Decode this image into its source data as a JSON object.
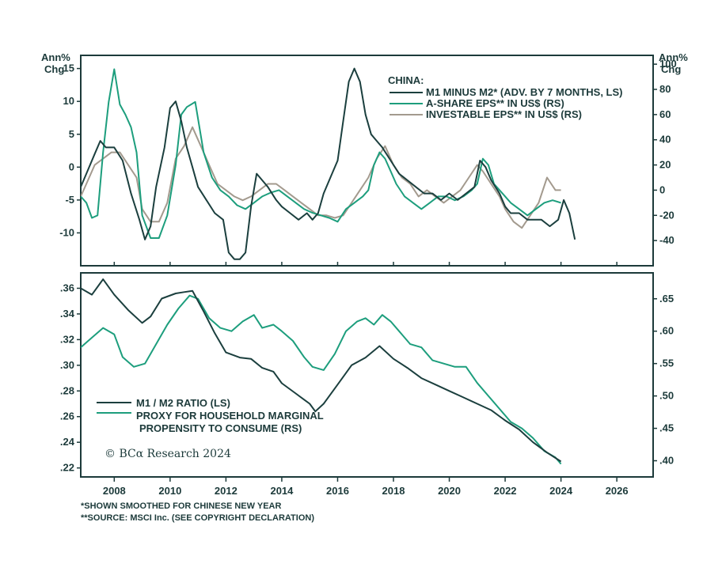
{
  "colors": {
    "dark": "#1b3f3e",
    "green": "#1d9e7d",
    "tan": "#a39a8e",
    "axis": "#1c3a3a"
  },
  "top_panel": {
    "left_unit_line1": "Ann%",
    "left_unit_line2": "Chg",
    "right_unit_line1": "Ann%",
    "right_unit_line2": "Chg",
    "legend_title": "CHINA:",
    "legend_items": [
      "M1 MINUS M2* (ADV. BY 7 MONTHS, LS)",
      "A-SHARE EPS** IN US$ (RS)",
      "INVESTABLE EPS** IN US$ (RS)"
    ]
  },
  "bottom_panel": {
    "legend_items": [
      "M1 / M2 RATIO (LS)",
      "PROXY FOR HOUSEHOLD MARGINAL",
      "PROPENSITY TO CONSUME (RS)"
    ]
  },
  "copyright": "© BCα Research 2024",
  "footnotes": [
    "*SHOWN SMOOTHED FOR CHINESE NEW YEAR",
    "**SOURCE: MSCI Inc. (SEE COPYRIGHT DECLARATION)"
  ],
  "chart_data": [
    {
      "type": "line",
      "title": "CHINA:",
      "xlim": [
        2006.8,
        2027.3
      ],
      "x_ticks": [
        2008,
        2010,
        2012,
        2014,
        2016,
        2018,
        2020,
        2022,
        2024,
        2026
      ],
      "ylim_left": [
        -15,
        17
      ],
      "yticks_left": [
        15,
        10,
        5,
        0,
        -5,
        -10
      ],
      "ylim_right": [
        -60,
        107
      ],
      "yticks_right": [
        100,
        80,
        60,
        40,
        20,
        0,
        -20,
        -40
      ],
      "series": [
        {
          "name": "M1 MINUS M2* (ADV. BY 7 MONTHS, LS)",
          "axis": "left",
          "color": "dark",
          "x": [
            2006.8,
            2007.0,
            2007.3,
            2007.5,
            2007.7,
            2008.0,
            2008.3,
            2008.6,
            2008.9,
            2009.1,
            2009.3,
            2009.5,
            2009.8,
            2010.0,
            2010.2,
            2010.4,
            2010.6,
            2010.8,
            2011.0,
            2011.3,
            2011.6,
            2011.9,
            2012.1,
            2012.3,
            2012.5,
            2012.7,
            2012.9,
            2013.1,
            2013.3,
            2013.5,
            2013.8,
            2014.0,
            2014.3,
            2014.6,
            2014.9,
            2015.1,
            2015.3,
            2015.5,
            2015.8,
            2016.0,
            2016.2,
            2016.4,
            2016.6,
            2016.8,
            2017.0,
            2017.2,
            2017.4,
            2017.6,
            2017.9,
            2018.2,
            2018.5,
            2018.8,
            2019.1,
            2019.4,
            2019.7,
            2020.0,
            2020.3,
            2020.6,
            2020.9,
            2021.1,
            2021.3,
            2021.5,
            2021.8,
            2022.0,
            2022.2,
            2022.5,
            2022.8,
            2023.0,
            2023.3,
            2023.6,
            2023.9,
            2024.1,
            2024.3,
            2024.5
          ],
          "y": [
            -3,
            -1,
            2,
            4,
            3,
            3,
            1,
            -4,
            -8,
            -11,
            -9,
            -3,
            3,
            9,
            10,
            7,
            3,
            0,
            -3,
            -5,
            -7,
            -8,
            -13,
            -14,
            -14,
            -13,
            -6,
            -1,
            -2,
            -3,
            -5,
            -6,
            -7,
            -8,
            -7,
            -8,
            -7,
            -4,
            -1,
            1,
            7,
            13,
            15,
            13,
            8,
            5,
            4,
            3,
            1,
            -1,
            -2,
            -3,
            -4,
            -4,
            -5,
            -4,
            -5,
            -4,
            -3,
            1,
            0,
            -2,
            -4,
            -6,
            -7,
            -7,
            -8,
            -8,
            -8,
            -9,
            -8,
            -5,
            -7,
            -11
          ]
        },
        {
          "name": "A-SHARE EPS** IN US$ (RS)",
          "axis": "right",
          "color": "green",
          "x": [
            2006.8,
            2007.0,
            2007.2,
            2007.4,
            2007.6,
            2007.8,
            2008.0,
            2008.2,
            2008.4,
            2008.6,
            2008.8,
            2009.0,
            2009.3,
            2009.6,
            2009.9,
            2010.2,
            2010.4,
            2010.6,
            2010.9,
            2011.2,
            2011.5,
            2011.8,
            2012.1,
            2012.4,
            2012.7,
            2013.0,
            2013.3,
            2013.6,
            2013.9,
            2014.2,
            2014.5,
            2014.8,
            2015.1,
            2015.4,
            2015.7,
            2016.0,
            2016.3,
            2016.6,
            2016.9,
            2017.1,
            2017.3,
            2017.5,
            2017.7,
            2017.9,
            2018.1,
            2018.4,
            2018.7,
            2019.0,
            2019.3,
            2019.6,
            2019.9,
            2020.2,
            2020.5,
            2020.8,
            2021.0,
            2021.2,
            2021.4,
            2021.6,
            2021.8,
            2022.0,
            2022.2,
            2022.5,
            2022.8,
            2023.1,
            2023.4,
            2023.7,
            2024.0
          ],
          "y": [
            -5,
            -10,
            -22,
            -20,
            30,
            70,
            96,
            68,
            60,
            50,
            30,
            -20,
            -38,
            -38,
            -20,
            20,
            60,
            66,
            70,
            30,
            10,
            0,
            -5,
            -12,
            -15,
            -10,
            -5,
            -2,
            0,
            -5,
            -10,
            -15,
            -18,
            -20,
            -22,
            -25,
            -15,
            -10,
            -5,
            0,
            20,
            30,
            25,
            15,
            5,
            -5,
            -10,
            -15,
            -10,
            -5,
            -5,
            -8,
            -5,
            0,
            5,
            25,
            20,
            5,
            0,
            -5,
            -10,
            -15,
            -20,
            -15,
            -10,
            -8,
            -10
          ]
        },
        {
          "name": "INVESTABLE EPS** IN US$ (RS)",
          "axis": "right",
          "color": "tan",
          "x": [
            2006.8,
            2007.0,
            2007.3,
            2007.6,
            2007.9,
            2008.2,
            2008.5,
            2008.8,
            2009.0,
            2009.3,
            2009.6,
            2009.9,
            2010.2,
            2010.5,
            2010.8,
            2011.1,
            2011.4,
            2011.7,
            2012.0,
            2012.3,
            2012.6,
            2012.9,
            2013.2,
            2013.5,
            2013.8,
            2014.1,
            2014.4,
            2014.7,
            2015.0,
            2015.3,
            2015.6,
            2015.9,
            2016.2,
            2016.5,
            2016.8,
            2017.1,
            2017.4,
            2017.7,
            2018.0,
            2018.3,
            2018.6,
            2018.9,
            2019.2,
            2019.5,
            2019.8,
            2020.1,
            2020.4,
            2020.7,
            2021.0,
            2021.2,
            2021.5,
            2021.8,
            2022.0,
            2022.3,
            2022.6,
            2022.9,
            2023.2,
            2023.5,
            2023.8,
            2024.0
          ],
          "y": [
            -5,
            5,
            20,
            25,
            30,
            30,
            20,
            10,
            -15,
            -25,
            -25,
            -10,
            25,
            35,
            50,
            35,
            20,
            5,
            0,
            -5,
            -8,
            -5,
            0,
            5,
            5,
            0,
            -5,
            -10,
            -15,
            -20,
            -20,
            -22,
            -20,
            -10,
            0,
            10,
            25,
            35,
            20,
            10,
            5,
            -5,
            0,
            -5,
            -10,
            -5,
            0,
            10,
            20,
            15,
            5,
            -5,
            -15,
            -25,
            -30,
            -20,
            -10,
            10,
            0,
            0
          ]
        }
      ]
    },
    {
      "type": "line",
      "title": "",
      "xlim": [
        2006.8,
        2027.3
      ],
      "ylim_left": [
        0.213,
        0.372
      ],
      "yticks_left": [
        0.36,
        0.34,
        0.32,
        0.3,
        0.28,
        0.26,
        0.24,
        0.22
      ],
      "ytick_labels_left": [
        ".36",
        ".34",
        ".32",
        ".30",
        ".28",
        ".26",
        ".24",
        ".22"
      ],
      "ylim_right": [
        0.375,
        0.69
      ],
      "yticks_right": [
        0.65,
        0.6,
        0.55,
        0.5,
        0.45,
        0.4
      ],
      "ytick_labels_right": [
        ".65",
        ".60",
        ".55",
        ".50",
        ".45",
        ".40"
      ],
      "series": [
        {
          "name": "M1 / M2 RATIO (LS)",
          "axis": "left",
          "color": "dark",
          "x": [
            2006.8,
            2007.2,
            2007.6,
            2008.0,
            2008.5,
            2009.0,
            2009.3,
            2009.7,
            2010.2,
            2010.5,
            2010.8,
            2011.2,
            2011.6,
            2012.0,
            2012.5,
            2012.9,
            2013.3,
            2013.7,
            2014.0,
            2014.5,
            2015.0,
            2015.2,
            2015.5,
            2016.0,
            2016.5,
            2017.0,
            2017.5,
            2018.0,
            2018.5,
            2019.0,
            2019.5,
            2020.0,
            2020.5,
            2021.0,
            2021.5,
            2022.0,
            2022.5,
            2023.0,
            2023.5,
            2024.0
          ],
          "y": [
            0.36,
            0.355,
            0.367,
            0.355,
            0.343,
            0.333,
            0.338,
            0.352,
            0.356,
            0.357,
            0.358,
            0.342,
            0.325,
            0.31,
            0.306,
            0.305,
            0.298,
            0.295,
            0.286,
            0.278,
            0.27,
            0.264,
            0.27,
            0.285,
            0.3,
            0.306,
            0.315,
            0.305,
            0.298,
            0.29,
            0.285,
            0.28,
            0.275,
            0.27,
            0.265,
            0.257,
            0.25,
            0.24,
            0.232,
            0.225
          ]
        },
        {
          "name": "PROXY FOR HOUSEHOLD MARGINAL PROPENSITY TO CONSUME (RS)",
          "axis": "right",
          "color": "green",
          "x": [
            2006.8,
            2007.2,
            2007.6,
            2008.0,
            2008.3,
            2008.7,
            2009.1,
            2009.5,
            2009.9,
            2010.3,
            2010.7,
            2011.0,
            2011.4,
            2011.8,
            2012.2,
            2012.6,
            2013.0,
            2013.3,
            2013.7,
            2014.0,
            2014.4,
            2014.8,
            2015.1,
            2015.5,
            2015.9,
            2016.3,
            2016.7,
            2017.0,
            2017.3,
            2017.6,
            2017.9,
            2018.2,
            2018.6,
            2019.0,
            2019.4,
            2019.8,
            2020.2,
            2020.6,
            2021.0,
            2021.4,
            2021.8,
            2022.2,
            2022.6,
            2023.0,
            2023.4,
            2023.8,
            2024.0
          ],
          "y": [
            0.575,
            0.59,
            0.605,
            0.595,
            0.56,
            0.545,
            0.55,
            0.58,
            0.61,
            0.635,
            0.655,
            0.65,
            0.62,
            0.605,
            0.6,
            0.615,
            0.625,
            0.605,
            0.61,
            0.6,
            0.585,
            0.56,
            0.545,
            0.54,
            0.565,
            0.6,
            0.615,
            0.62,
            0.61,
            0.625,
            0.615,
            0.6,
            0.58,
            0.575,
            0.555,
            0.55,
            0.545,
            0.545,
            0.52,
            0.5,
            0.48,
            0.46,
            0.45,
            0.435,
            0.415,
            0.405,
            0.395
          ]
        }
      ]
    }
  ]
}
